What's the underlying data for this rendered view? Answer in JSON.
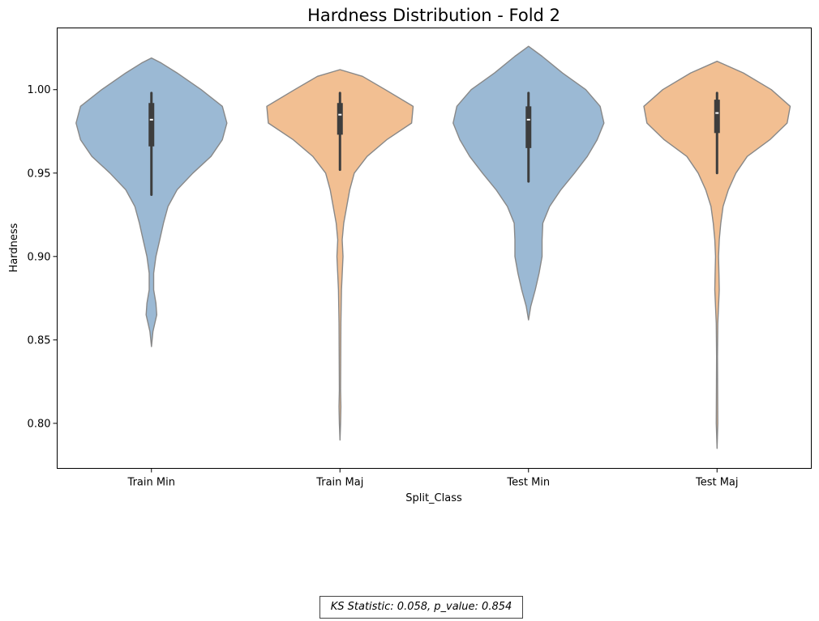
{
  "chart_data": {
    "type": "violin",
    "title": "Hardness Distribution - Fold 2",
    "xlabel": "Split_Class",
    "ylabel": "Hardness",
    "ylim": [
      0.773,
      1.037
    ],
    "yticks": [
      0.8,
      0.85,
      0.9,
      0.95,
      1.0
    ],
    "ytick_labels": [
      "0.80",
      "0.85",
      "0.90",
      "0.95",
      "1.00"
    ],
    "grid": false,
    "categories": [
      "Train Min",
      "Train Maj",
      "Test Min",
      "Test Maj"
    ],
    "colors": {
      "min": "#9bb9d4",
      "maj": "#f2bf92",
      "edge": "#888888",
      "box": "#3d3d3d",
      "median": "#ffffff"
    },
    "series": [
      {
        "category": "Train Min",
        "color_key": "min",
        "box": {
          "whisker_low": 0.937,
          "q1": 0.966,
          "median": 0.982,
          "q3": 0.992,
          "whisker_high": 0.998
        },
        "density": [
          [
            0.846,
            0
          ],
          [
            0.855,
            0.02
          ],
          [
            0.865,
            0.07
          ],
          [
            0.872,
            0.06
          ],
          [
            0.88,
            0.03
          ],
          [
            0.89,
            0.03
          ],
          [
            0.9,
            0.06
          ],
          [
            0.91,
            0.11
          ],
          [
            0.92,
            0.16
          ],
          [
            0.93,
            0.22
          ],
          [
            0.94,
            0.34
          ],
          [
            0.95,
            0.55
          ],
          [
            0.96,
            0.79
          ],
          [
            0.97,
            0.94
          ],
          [
            0.98,
            1.0
          ],
          [
            0.99,
            0.94
          ],
          [
            1.0,
            0.66
          ],
          [
            1.01,
            0.34
          ],
          [
            1.016,
            0.13
          ],
          [
            1.019,
            0
          ]
        ]
      },
      {
        "category": "Train Maj",
        "color_key": "maj",
        "box": {
          "whisker_low": 0.952,
          "q1": 0.973,
          "median": 0.985,
          "q3": 0.992,
          "whisker_high": 0.998
        },
        "density": [
          [
            0.79,
            0
          ],
          [
            0.8,
            0.008
          ],
          [
            0.81,
            0.012
          ],
          [
            0.82,
            0.008
          ],
          [
            0.84,
            0.01
          ],
          [
            0.86,
            0.012
          ],
          [
            0.88,
            0.02
          ],
          [
            0.9,
            0.04
          ],
          [
            0.91,
            0.03
          ],
          [
            0.92,
            0.05
          ],
          [
            0.94,
            0.13
          ],
          [
            0.95,
            0.19
          ],
          [
            0.96,
            0.36
          ],
          [
            0.97,
            0.62
          ],
          [
            0.98,
            0.95
          ],
          [
            0.99,
            0.97
          ],
          [
            1.0,
            0.6
          ],
          [
            1.008,
            0.3
          ],
          [
            1.012,
            0
          ]
        ]
      },
      {
        "category": "Test Min",
        "color_key": "min",
        "box": {
          "whisker_low": 0.945,
          "q1": 0.965,
          "median": 0.982,
          "q3": 0.99,
          "whisker_high": 0.998
        },
        "density": [
          [
            0.862,
            0
          ],
          [
            0.87,
            0.03
          ],
          [
            0.88,
            0.09
          ],
          [
            0.89,
            0.14
          ],
          [
            0.9,
            0.18
          ],
          [
            0.91,
            0.18
          ],
          [
            0.92,
            0.19
          ],
          [
            0.93,
            0.28
          ],
          [
            0.94,
            0.43
          ],
          [
            0.95,
            0.61
          ],
          [
            0.96,
            0.78
          ],
          [
            0.97,
            0.91
          ],
          [
            0.98,
            1.0
          ],
          [
            0.99,
            0.95
          ],
          [
            1.0,
            0.76
          ],
          [
            1.01,
            0.45
          ],
          [
            1.02,
            0.18
          ],
          [
            1.026,
            0
          ]
        ]
      },
      {
        "category": "Test Maj",
        "color_key": "maj",
        "box": {
          "whisker_low": 0.95,
          "q1": 0.974,
          "median": 0.986,
          "q3": 0.994,
          "whisker_high": 0.998
        },
        "density": [
          [
            0.785,
            0
          ],
          [
            0.8,
            0.01
          ],
          [
            0.82,
            0.008
          ],
          [
            0.84,
            0.006
          ],
          [
            0.86,
            0.01
          ],
          [
            0.87,
            0.02
          ],
          [
            0.88,
            0.03
          ],
          [
            0.89,
            0.025
          ],
          [
            0.9,
            0.02
          ],
          [
            0.91,
            0.03
          ],
          [
            0.92,
            0.05
          ],
          [
            0.93,
            0.08
          ],
          [
            0.94,
            0.15
          ],
          [
            0.95,
            0.25
          ],
          [
            0.96,
            0.4
          ],
          [
            0.97,
            0.7
          ],
          [
            0.98,
            0.93
          ],
          [
            0.99,
            0.97
          ],
          [
            1.0,
            0.72
          ],
          [
            1.01,
            0.35
          ],
          [
            1.017,
            0
          ]
        ]
      }
    ]
  },
  "annotation": {
    "text": "KS Statistic: 0.058, p_value: 0.854"
  }
}
